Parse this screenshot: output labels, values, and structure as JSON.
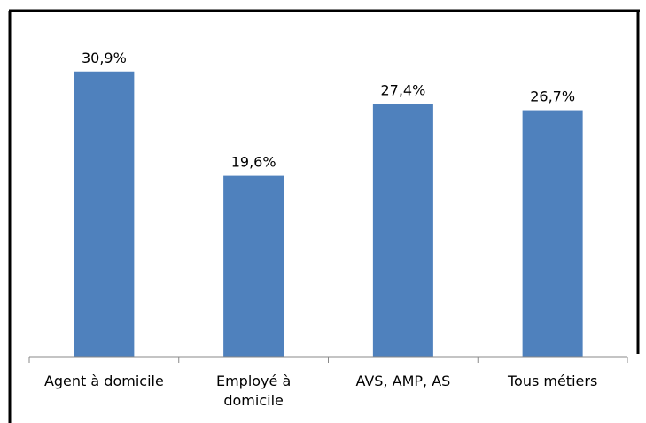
{
  "chart_data": {
    "type": "bar",
    "categories": [
      "Agent à domicile",
      "Employé à domicile",
      "AVS, AMP, AS",
      "Tous métiers"
    ],
    "values": [
      30.9,
      19.6,
      27.4,
      26.7
    ],
    "value_labels": [
      "30,9%",
      "19,6%",
      "27,4%",
      "26,7%"
    ],
    "color": "#4f81bd",
    "ylim": [
      0,
      35
    ]
  }
}
